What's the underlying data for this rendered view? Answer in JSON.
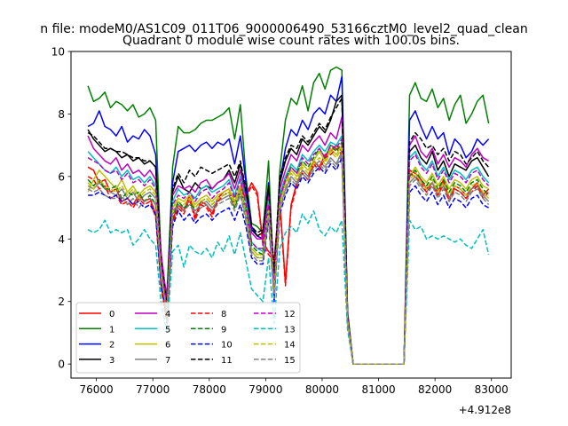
{
  "chart_data": {
    "type": "line",
    "suptitle": "n file: modeM0/AS1C09_011T06_9000006490_53166cztM0_level2_quad_clean",
    "title": "Quadrant 0 module wise count rates with 100.0s bins.",
    "xlabel": "",
    "ylabel": "",
    "x_offset_label": "+4.912e8",
    "xlim": [
      75550,
      83350
    ],
    "ylim": [
      -0.45,
      10
    ],
    "xticks": [
      76000,
      77000,
      78000,
      79000,
      80000,
      81000,
      82000,
      83000
    ],
    "xtick_labels": [
      "76000",
      "77000",
      "78000",
      "79000",
      "80000",
      "81000",
      "82000",
      "83000"
    ],
    "yticks": [
      0,
      2,
      4,
      6,
      8,
      10
    ],
    "ytick_labels": [
      "0",
      "2",
      "4",
      "6",
      "8",
      "10"
    ],
    "grid": false,
    "legend_position": "lower-left",
    "legend_columns": 4,
    "x_start": 75850,
    "x_step": 100,
    "series": [
      {
        "name": "0",
        "color": "#ff0000",
        "dash": false,
        "values": [
          6.3,
          6.2,
          5.8,
          5.9,
          5.5,
          5.6,
          5.2,
          5.3,
          5.1,
          5.4,
          5.2,
          5.3,
          4.8,
          2.5,
          1.4,
          4.6,
          5.1,
          4.9,
          5.4,
          4.7,
          5.2,
          5.1,
          4.8,
          5.3,
          5.5,
          5.6,
          5.2,
          5.7,
          5.4,
          5.8,
          5.5,
          3.9,
          3.6,
          3.4,
          5.2,
          2.6,
          5.1,
          5.8,
          6.2,
          6.0,
          6.5,
          6.3,
          6.7,
          6.8,
          7.0,
          6.8,
          1.4,
          0,
          0,
          0,
          0,
          0,
          0,
          0,
          0,
          0,
          0,
          6.2,
          6.1,
          5.9,
          5.6,
          5.8,
          5.5,
          5.9,
          5.3,
          5.7,
          5.6,
          5.4,
          5.6,
          5.8,
          5.4,
          5.6
        ]
      },
      {
        "name": "1",
        "color": "#008000",
        "dash": false,
        "values": [
          8.9,
          8.4,
          8.5,
          8.7,
          8.2,
          8.4,
          8.3,
          8.1,
          8.3,
          7.9,
          8.0,
          8.2,
          7.8,
          3.2,
          2.2,
          6.3,
          7.6,
          7.4,
          7.4,
          7.5,
          7.7,
          7.8,
          7.8,
          7.9,
          8.0,
          8.2,
          7.2,
          8.3,
          6.0,
          4.5,
          4.4,
          4.2,
          6.5,
          2.3,
          6.2,
          7.8,
          8.5,
          8.3,
          8.9,
          8.1,
          9.0,
          9.3,
          8.8,
          9.4,
          9.5,
          9.4,
          1.7,
          0,
          0,
          0,
          0,
          0,
          0,
          0,
          0,
          0,
          0,
          8.6,
          9.0,
          8.5,
          8.4,
          8.8,
          8.2,
          8.5,
          7.8,
          8.3,
          8.6,
          7.7,
          8.0,
          8.4,
          8.6,
          7.7
        ]
      },
      {
        "name": "2",
        "color": "#0000ff",
        "dash": false,
        "values": [
          7.6,
          7.7,
          8.1,
          7.6,
          7.5,
          7.3,
          7.6,
          7.1,
          7.3,
          7.2,
          7.5,
          7.3,
          6.7,
          3.0,
          2.0,
          5.8,
          6.8,
          6.9,
          7.0,
          6.8,
          7.0,
          7.1,
          6.9,
          7.1,
          7.0,
          7.2,
          6.4,
          7.3,
          5.8,
          4.4,
          4.1,
          4.0,
          5.8,
          2.0,
          5.8,
          6.9,
          7.5,
          7.3,
          7.8,
          7.5,
          8.0,
          8.2,
          8.0,
          8.6,
          8.4,
          9.2,
          1.6,
          0,
          0,
          0,
          0,
          0,
          0,
          0,
          0,
          0,
          0,
          7.8,
          8.1,
          7.6,
          7.2,
          7.6,
          7.2,
          7.4,
          6.7,
          7.2,
          7.0,
          6.6,
          6.8,
          7.2,
          7.0,
          7.2
        ]
      },
      {
        "name": "3",
        "color": "#000000",
        "dash": false,
        "values": [
          7.5,
          7.2,
          7.0,
          6.8,
          6.9,
          6.8,
          6.6,
          6.7,
          6.5,
          6.6,
          6.4,
          6.5,
          6.3,
          3.4,
          1.8,
          5.5,
          6.0,
          5.6,
          5.5,
          5.8,
          5.6,
          5.7,
          5.6,
          5.8,
          5.9,
          6.2,
          5.8,
          6.4,
          5.5,
          4.3,
          4.1,
          4.2,
          5.6,
          2.8,
          5.8,
          6.5,
          6.9,
          6.7,
          7.2,
          7.0,
          7.3,
          7.6,
          7.4,
          7.8,
          8.4,
          8.6,
          1.6,
          0,
          0,
          0,
          0,
          0,
          0,
          0,
          0,
          0,
          0,
          6.8,
          7.0,
          6.6,
          6.4,
          6.8,
          6.2,
          6.5,
          6.0,
          6.4,
          6.3,
          6.2,
          6.5,
          6.6,
          6.3,
          6.0
        ]
      },
      {
        "name": "4",
        "color": "#bf00bf",
        "dash": false,
        "values": [
          7.3,
          6.9,
          6.7,
          6.5,
          6.4,
          6.6,
          6.2,
          6.4,
          6.1,
          6.2,
          6.0,
          6.2,
          5.9,
          3.5,
          2.0,
          5.4,
          5.7,
          5.6,
          5.7,
          5.5,
          5.8,
          5.9,
          5.6,
          5.8,
          5.9,
          6.1,
          5.6,
          6.2,
          5.3,
          4.2,
          4.0,
          4.0,
          5.4,
          2.7,
          5.6,
          6.2,
          6.7,
          6.5,
          7.0,
          6.8,
          7.1,
          7.3,
          7.0,
          7.4,
          7.2,
          7.9,
          1.5,
          0,
          0,
          0,
          0,
          0,
          0,
          0,
          0,
          0,
          0,
          7.0,
          7.3,
          6.8,
          6.6,
          6.9,
          6.4,
          6.7,
          6.3,
          6.6,
          6.5,
          6.3,
          6.7,
          6.9,
          6.6,
          6.5
        ]
      },
      {
        "name": "5",
        "color": "#00bfbf",
        "dash": false,
        "values": [
          6.8,
          6.6,
          6.4,
          6.2,
          6.1,
          6.3,
          6.0,
          6.2,
          5.9,
          6.0,
          5.8,
          6.0,
          5.7,
          3.1,
          1.6,
          5.2,
          5.6,
          5.4,
          5.5,
          5.3,
          5.6,
          5.7,
          5.5,
          5.6,
          5.7,
          5.9,
          5.4,
          6.0,
          5.2,
          3.9,
          3.7,
          3.6,
          5.2,
          2.4,
          5.4,
          6.0,
          6.4,
          6.2,
          6.7,
          6.5,
          6.8,
          7.0,
          6.8,
          7.1,
          7.0,
          7.3,
          1.5,
          0,
          0,
          0,
          0,
          0,
          0,
          0,
          0,
          0,
          0,
          6.6,
          6.8,
          6.4,
          6.2,
          6.5,
          6.0,
          6.3,
          5.9,
          6.2,
          6.1,
          5.9,
          6.2,
          6.3,
          6.0,
          5.8
        ]
      },
      {
        "name": "6",
        "color": "#bfbf00",
        "dash": false,
        "values": [
          5.5,
          5.9,
          6.2,
          6.0,
          5.8,
          5.6,
          5.9,
          5.5,
          5.7,
          5.4,
          5.6,
          5.7,
          5.5,
          2.9,
          1.8,
          5.0,
          5.3,
          5.2,
          5.4,
          5.1,
          5.3,
          5.4,
          5.2,
          5.4,
          5.5,
          5.6,
          5.2,
          5.7,
          4.9,
          3.7,
          3.5,
          3.5,
          5.0,
          2.3,
          5.2,
          5.8,
          6.2,
          6.0,
          6.4,
          6.2,
          6.5,
          6.8,
          6.5,
          6.9,
          6.7,
          7.0,
          1.4,
          0,
          0,
          0,
          0,
          0,
          0,
          0,
          0,
          0,
          0,
          6.0,
          6.3,
          6.0,
          5.8,
          6.1,
          5.7,
          6.0,
          5.6,
          5.9,
          5.8,
          5.6,
          5.9,
          6.0,
          5.7,
          5.6
        ]
      },
      {
        "name": "7",
        "color": "#808080",
        "dash": false,
        "values": [
          5.7,
          5.6,
          5.8,
          5.6,
          5.5,
          5.4,
          5.6,
          5.3,
          5.5,
          5.2,
          5.4,
          5.5,
          5.3,
          2.8,
          1.7,
          4.9,
          5.1,
          5.0,
          5.2,
          4.9,
          5.1,
          5.2,
          5.0,
          5.2,
          5.3,
          5.4,
          5.0,
          5.5,
          4.7,
          3.6,
          3.4,
          3.4,
          4.8,
          2.2,
          5.0,
          5.6,
          6.0,
          5.8,
          6.2,
          6.0,
          6.3,
          6.5,
          6.3,
          6.6,
          6.4,
          6.8,
          1.4,
          0,
          0,
          0,
          0,
          0,
          0,
          0,
          0,
          0,
          0,
          5.8,
          6.0,
          5.7,
          5.5,
          5.8,
          5.4,
          5.7,
          5.3,
          5.6,
          5.5,
          5.3,
          5.6,
          5.7,
          5.4,
          5.2
        ]
      },
      {
        "name": "8",
        "color": "#ff0000",
        "dash": true,
        "values": [
          6.0,
          5.9,
          5.6,
          5.7,
          5.3,
          5.4,
          5.1,
          5.2,
          5.0,
          5.3,
          5.1,
          5.2,
          4.7,
          2.4,
          1.3,
          4.5,
          5.0,
          4.8,
          5.3,
          4.6,
          5.1,
          5.0,
          4.7,
          5.2,
          5.4,
          5.5,
          5.1,
          5.6,
          5.3,
          5.7,
          5.4,
          3.8,
          3.5,
          3.3,
          5.1,
          2.5,
          5.0,
          5.7,
          6.1,
          5.9,
          6.4,
          6.2,
          6.6,
          6.7,
          6.9,
          6.7,
          1.4,
          0,
          0,
          0,
          0,
          0,
          0,
          0,
          0,
          0,
          0,
          6.1,
          6.0,
          5.8,
          5.5,
          5.7,
          5.4,
          5.8,
          5.2,
          5.6,
          5.5,
          5.3,
          5.5,
          5.7,
          5.3,
          5.5
        ]
      },
      {
        "name": "9",
        "color": "#008000",
        "dash": true,
        "values": [
          5.9,
          5.7,
          5.9,
          5.6,
          5.6,
          5.7,
          5.3,
          5.5,
          5.4,
          5.5,
          5.2,
          5.4,
          5.1,
          2.6,
          1.5,
          4.7,
          5.2,
          5.0,
          5.1,
          5.0,
          5.2,
          5.3,
          5.1,
          5.3,
          5.4,
          5.5,
          5.0,
          5.6,
          4.9,
          3.8,
          3.6,
          3.5,
          5.0,
          2.3,
          5.3,
          5.9,
          6.3,
          6.1,
          6.5,
          6.3,
          6.6,
          6.9,
          6.6,
          7.0,
          6.8,
          7.1,
          1.5,
          0,
          0,
          0,
          0,
          0,
          0,
          0,
          0,
          0,
          0,
          6.0,
          6.2,
          5.9,
          5.7,
          6.0,
          5.6,
          5.9,
          5.5,
          5.8,
          5.7,
          5.5,
          5.8,
          5.9,
          5.6,
          5.4
        ]
      },
      {
        "name": "10",
        "color": "#0000ff",
        "dash": true,
        "values": [
          5.4,
          5.4,
          5.5,
          5.4,
          5.3,
          5.4,
          5.2,
          5.3,
          5.1,
          5.2,
          5.0,
          5.1,
          4.8,
          2.5,
          1.6,
          4.4,
          4.9,
          4.6,
          4.8,
          4.5,
          4.7,
          4.8,
          4.6,
          4.8,
          4.9,
          5.0,
          4.6,
          5.1,
          4.4,
          3.4,
          3.2,
          3.2,
          4.6,
          2.1,
          4.8,
          5.4,
          5.8,
          5.6,
          6.0,
          5.8,
          6.1,
          6.3,
          6.1,
          6.4,
          6.2,
          6.6,
          1.4,
          0,
          0,
          0,
          0,
          0,
          0,
          0,
          0,
          0,
          0,
          5.5,
          5.7,
          5.4,
          5.2,
          5.5,
          5.1,
          5.4,
          5.0,
          5.3,
          5.2,
          5.0,
          5.3,
          5.4,
          5.1,
          5.0
        ]
      },
      {
        "name": "11",
        "color": "#000000",
        "dash": true,
        "values": [
          7.4,
          7.3,
          7.1,
          6.9,
          6.9,
          6.8,
          6.8,
          6.7,
          6.6,
          6.6,
          6.5,
          6.5,
          6.3,
          3.3,
          1.9,
          5.6,
          6.1,
          5.8,
          6.2,
          6.0,
          6.3,
          6.2,
          6.1,
          6.2,
          6.3,
          6.4,
          6.0,
          6.5,
          5.6,
          4.4,
          4.2,
          4.3,
          5.7,
          2.9,
          6.0,
          6.6,
          7.0,
          6.9,
          7.3,
          7.1,
          7.4,
          7.7,
          7.5,
          7.9,
          8.2,
          8.5,
          1.6,
          0,
          0,
          0,
          0,
          0,
          0,
          0,
          0,
          0,
          0,
          7.1,
          7.4,
          7.2,
          6.9,
          7.0,
          6.7,
          6.9,
          6.5,
          6.8,
          6.7,
          6.4,
          6.6,
          6.8,
          6.5,
          6.3
        ]
      },
      {
        "name": "12",
        "color": "#bf00bf",
        "dash": true,
        "values": [
          6.6,
          6.5,
          6.4,
          6.2,
          6.1,
          6.2,
          5.9,
          6.1,
          5.8,
          5.9,
          5.7,
          5.9,
          5.6,
          3.2,
          1.8,
          5.1,
          5.4,
          5.3,
          5.5,
          5.2,
          5.5,
          5.6,
          5.3,
          5.5,
          5.6,
          5.8,
          5.3,
          5.9,
          5.1,
          3.9,
          3.7,
          3.7,
          5.1,
          2.5,
          5.3,
          5.9,
          6.3,
          6.1,
          6.6,
          6.4,
          6.7,
          6.9,
          6.6,
          7.0,
          6.9,
          7.2,
          1.5,
          0,
          0,
          0,
          0,
          0,
          0,
          0,
          0,
          0,
          0,
          6.5,
          6.7,
          6.3,
          6.1,
          6.4,
          5.9,
          6.2,
          5.8,
          6.1,
          6.0,
          5.8,
          6.1,
          6.2,
          5.9,
          5.7
        ]
      },
      {
        "name": "13",
        "color": "#00bfbf",
        "dash": true,
        "values": [
          4.3,
          4.2,
          4.3,
          4.6,
          4.2,
          4.3,
          4.2,
          4.3,
          3.8,
          4.0,
          4.3,
          4.0,
          3.8,
          1.9,
          1.0,
          3.6,
          3.8,
          3.1,
          3.8,
          3.6,
          3.5,
          3.7,
          3.4,
          3.9,
          3.6,
          4.1,
          3.5,
          4.2,
          3.3,
          2.4,
          2.2,
          2.0,
          3.4,
          1.3,
          3.7,
          4.2,
          4.4,
          4.2,
          4.8,
          4.5,
          4.9,
          4.3,
          4.1,
          4.4,
          4.2,
          4.6,
          1.1,
          0,
          0,
          0,
          0,
          0,
          0,
          0,
          0,
          0,
          0,
          4.6,
          4.3,
          4.4,
          4.0,
          4.1,
          4.0,
          4.1,
          4.0,
          3.9,
          4.0,
          3.8,
          3.7,
          4.0,
          4.3,
          3.5
        ]
      },
      {
        "name": "14",
        "color": "#bfbf00",
        "dash": true,
        "values": [
          5.8,
          5.6,
          5.9,
          5.7,
          5.6,
          5.5,
          5.7,
          5.4,
          5.6,
          5.3,
          5.5,
          5.6,
          5.4,
          2.8,
          1.7,
          5.0,
          5.2,
          5.1,
          5.3,
          5.0,
          5.2,
          5.3,
          5.1,
          5.3,
          5.4,
          5.5,
          5.1,
          5.6,
          4.8,
          3.6,
          3.4,
          3.4,
          4.9,
          2.3,
          5.1,
          5.7,
          6.1,
          5.9,
          6.3,
          6.1,
          6.4,
          6.6,
          6.4,
          6.8,
          6.6,
          6.9,
          1.4,
          0,
          0,
          0,
          0,
          0,
          0,
          0,
          0,
          0,
          0,
          5.9,
          6.1,
          5.8,
          5.6,
          5.9,
          5.5,
          5.8,
          5.4,
          5.7,
          5.6,
          5.4,
          5.7,
          5.8,
          5.5,
          5.3
        ]
      },
      {
        "name": "15",
        "color": "#808080",
        "dash": true,
        "values": [
          5.6,
          5.5,
          5.6,
          5.4,
          5.3,
          5.3,
          5.4,
          5.1,
          5.3,
          5.0,
          5.2,
          5.3,
          5.1,
          2.7,
          1.6,
          4.8,
          5.0,
          4.9,
          5.1,
          4.8,
          5.0,
          5.1,
          4.9,
          5.1,
          5.2,
          5.3,
          4.9,
          5.4,
          4.6,
          3.5,
          3.3,
          3.3,
          4.7,
          2.1,
          4.9,
          5.5,
          5.9,
          5.7,
          6.1,
          5.9,
          6.2,
          6.4,
          6.2,
          6.5,
          6.3,
          6.7,
          1.3,
          0,
          0,
          0,
          0,
          0,
          0,
          0,
          0,
          0,
          0,
          5.7,
          5.9,
          5.6,
          5.4,
          5.7,
          5.3,
          5.6,
          5.2,
          5.5,
          5.4,
          5.2,
          5.5,
          5.6,
          5.3,
          5.1
        ]
      }
    ]
  }
}
